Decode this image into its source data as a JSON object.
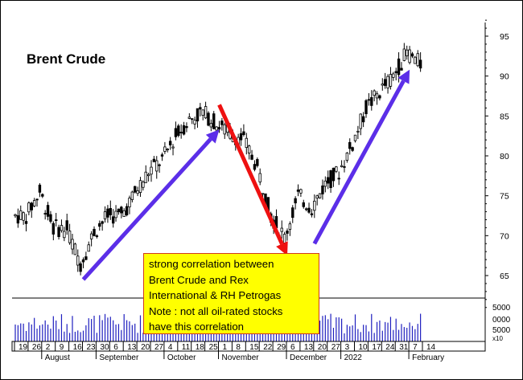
{
  "chart_data": {
    "type": "candlestick",
    "title": "Brent Crude",
    "xlabel": "",
    "ylabel": "",
    "ylim": [
      61,
      97
    ],
    "y_ticks": [
      65,
      70,
      75,
      80,
      85,
      90,
      95
    ],
    "volume_ticks": [
      "5000",
      "0000",
      "5000"
    ],
    "volume_multiplier": "x10",
    "x_day_labels": [
      "19",
      "26",
      "2",
      "9",
      "16",
      "23",
      "30",
      "6",
      "13",
      "20",
      "27",
      "4",
      "11",
      "18",
      "25",
      "1",
      "8",
      "15",
      "22",
      "29",
      "6",
      "13",
      "20",
      "27",
      "3",
      "10",
      "17",
      "24",
      "31",
      "7",
      "14"
    ],
    "x_month_labels": [
      {
        "label": "August",
        "at_day": "2"
      },
      {
        "label": "September",
        "at_day": "30"
      },
      {
        "label": "October",
        "at_day": "4"
      },
      {
        "label": "November",
        "at_day": "1"
      },
      {
        "label": "December",
        "at_day": "6"
      },
      {
        "label": "2022",
        "at_day": "3"
      },
      {
        "label": "February",
        "at_day": "7"
      }
    ],
    "trend_arrows": [
      {
        "color": "#5b2ee8",
        "from": {
          "x": "23 Aug",
          "y": 64.5
        },
        "to": {
          "x": "1 Nov",
          "y": 83.3
        }
      },
      {
        "color": "#ee1111",
        "from": {
          "x": "1 Nov",
          "y": 86.4
        },
        "to": {
          "x": "6 Dec",
          "y": 67.5
        }
      },
      {
        "color": "#5b2ee8",
        "from": {
          "x": "20 Dec",
          "y": 69
        },
        "to": {
          "x": "7 Feb",
          "y": 90.8
        }
      }
    ],
    "weekly_closes": [
      {
        "week": "19 Jul",
        "close": 72.5
      },
      {
        "week": "26 Jul",
        "close": 75.5
      },
      {
        "week": "2 Aug",
        "close": 71.0
      },
      {
        "week": "9 Aug",
        "close": 70.8
      },
      {
        "week": "16 Aug",
        "close": 66.5
      },
      {
        "week": "23 Aug",
        "close": 70.5
      },
      {
        "week": "30 Aug",
        "close": 72.5
      },
      {
        "week": "6 Sep",
        "close": 72.5
      },
      {
        "week": "13 Sep",
        "close": 75.3
      },
      {
        "week": "20 Sep",
        "close": 78.0
      },
      {
        "week": "27 Sep",
        "close": 79.5
      },
      {
        "week": "4 Oct",
        "close": 82.5
      },
      {
        "week": "11 Oct",
        "close": 84.5
      },
      {
        "week": "18 Oct",
        "close": 85.5
      },
      {
        "week": "25 Oct",
        "close": 84.0
      },
      {
        "week": "1 Nov",
        "close": 82.8
      },
      {
        "week": "8 Nov",
        "close": 82.0
      },
      {
        "week": "15 Nov",
        "close": 78.5
      },
      {
        "week": "22 Nov",
        "close": 72.5
      },
      {
        "week": "29 Nov",
        "close": 69.8
      },
      {
        "week": "6 Dec",
        "close": 75.0
      },
      {
        "week": "13 Dec",
        "close": 73.5
      },
      {
        "week": "20 Dec",
        "close": 76.5
      },
      {
        "week": "27 Dec",
        "close": 78.0
      },
      {
        "week": "3 Jan",
        "close": 81.5
      },
      {
        "week": "10 Jan",
        "close": 86.0
      },
      {
        "week": "17 Jan",
        "close": 88.0
      },
      {
        "week": "24 Jan",
        "close": 90.0
      },
      {
        "week": "31 Jan",
        "close": 93.0
      },
      {
        "week": "7 Feb",
        "close": 91.5
      }
    ],
    "grid": false,
    "legend": "none"
  },
  "annotation": {
    "lines": [
      "strong correlation between",
      "Brent Crude and Rex",
      "International & RH Petrogas",
      "Note : not all oil-rated stocks",
      "have this correlation"
    ]
  },
  "colors": {
    "candle": "#000000",
    "volume": "#1f1fbf",
    "up_arrow": "#5b2ee8",
    "down_arrow": "#ee1111",
    "note_bg": "#ffff00",
    "note_border": "#d03a1b"
  }
}
